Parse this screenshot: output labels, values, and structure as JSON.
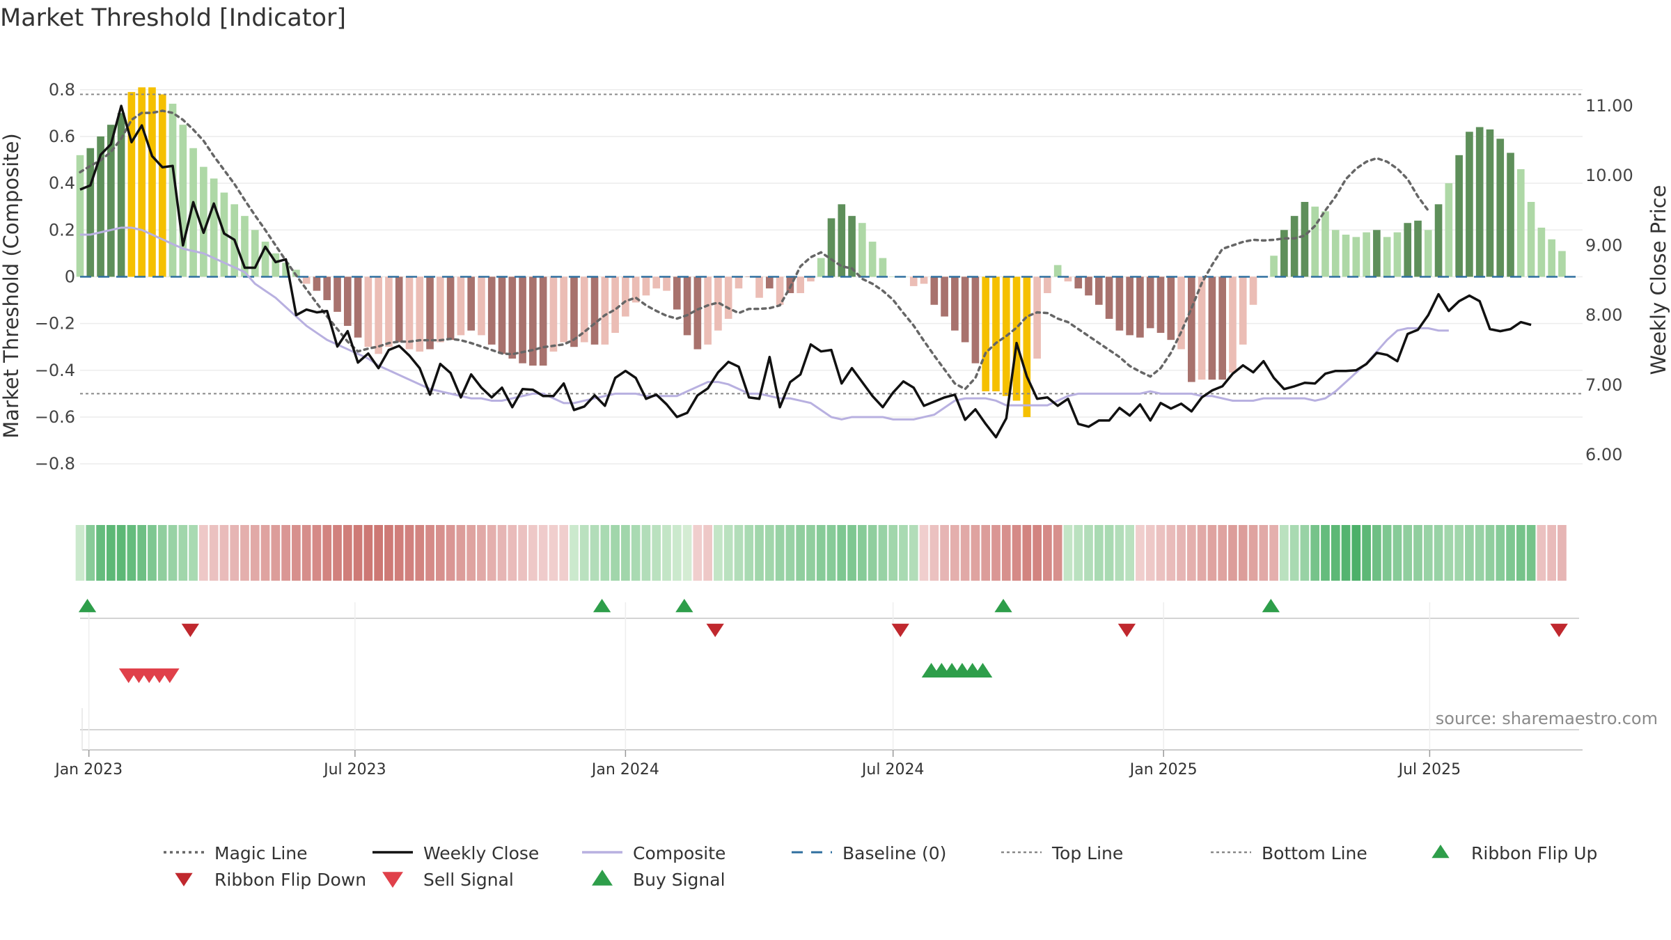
{
  "title": "Market Threshold [Indicator]",
  "source": "source: sharemaestro.com",
  "colors": {
    "magic_line": "#666666",
    "weekly_close": "#111111",
    "composite": "#b8b0e0",
    "baseline": "#2f6f9f",
    "top_bottom_line": "#888888",
    "bar_strong_pos": "#5e8f5a",
    "bar_weak_pos": "#aed8a6",
    "bar_strong_neg": "#a8726d",
    "bar_weak_neg": "#ebbdb5",
    "bar_extreme": "#f5c000",
    "signal_up": "#2e9e4a",
    "signal_down": "#d8333a"
  },
  "chart_data": {
    "type": "bar",
    "title": "Market Threshold [Indicator]",
    "xlabel": "",
    "ylabel": "Market Threshold (Composite)",
    "y2label": "Weekly Close Price",
    "ylim": [
      -0.88,
      0.85
    ],
    "y2lim": [
      5.6,
      11.4
    ],
    "yticks": [
      0.8,
      0.6,
      0.4,
      0.2,
      0,
      -0.2,
      -0.4,
      -0.6,
      -0.8
    ],
    "ytick_labels": [
      "0.8",
      "0.6",
      "0.4",
      "0.2",
      "0",
      "−0.2",
      "−0.4",
      "−0.6",
      "−0.8"
    ],
    "y2ticks": [
      11.0,
      10.0,
      9.0,
      8.0,
      7.0,
      6.0
    ],
    "y2tick_labels": [
      "11.00",
      "10.00",
      "9.00",
      "8.00",
      "7.00",
      "6.00"
    ],
    "x_range": [
      "2022-12-26",
      "2025-10-13"
    ],
    "xticks": [
      "2023-01-01",
      "2023-07-01",
      "2024-01-01",
      "2024-07-01",
      "2025-01-01",
      "2025-07-01"
    ],
    "xtick_labels": [
      "Jan 2023",
      "Jul 2023",
      "Jan 2024",
      "Jul 2024",
      "Jan 2025",
      "Jul 2025"
    ],
    "grid": true,
    "top_line": 0.78,
    "bottom_line": -0.5,
    "baseline": 0,
    "bar_colors_legend": [
      "strong_pos",
      "weak_pos",
      "strong_neg",
      "weak_neg",
      "extreme"
    ],
    "composite_bars": {
      "start": "2022-12-26",
      "step_days": 7,
      "values": [
        0.52,
        0.55,
        0.6,
        0.65,
        0.7,
        0.79,
        0.81,
        0.81,
        0.78,
        0.74,
        0.65,
        0.55,
        0.47,
        0.42,
        0.36,
        0.31,
        0.26,
        0.2,
        0.15,
        0.1,
        0.06,
        0.03,
        -0.03,
        -0.06,
        -0.1,
        -0.15,
        -0.21,
        -0.26,
        -0.3,
        -0.33,
        -0.3,
        -0.28,
        -0.31,
        -0.32,
        -0.31,
        -0.28,
        -0.27,
        -0.25,
        -0.23,
        -0.25,
        -0.29,
        -0.33,
        -0.35,
        -0.37,
        -0.38,
        -0.38,
        -0.32,
        -0.28,
        -0.3,
        -0.28,
        -0.29,
        -0.29,
        -0.24,
        -0.17,
        -0.11,
        -0.08,
        -0.05,
        -0.06,
        -0.14,
        -0.25,
        -0.31,
        -0.29,
        -0.23,
        -0.18,
        -0.05,
        0,
        -0.09,
        -0.05,
        -0.12,
        -0.07,
        -0.07,
        -0.02,
        0.08,
        0.25,
        0.31,
        0.26,
        0.23,
        0.15,
        0.08,
        0,
        0,
        -0.04,
        -0.03,
        -0.12,
        -0.17,
        -0.23,
        -0.28,
        -0.37,
        -0.49,
        -0.49,
        -0.51,
        -0.53,
        -0.6,
        -0.35,
        -0.07,
        0.05,
        -0.02,
        -0.05,
        -0.08,
        -0.12,
        -0.18,
        -0.23,
        -0.25,
        -0.26,
        -0.22,
        -0.24,
        -0.27,
        -0.31,
        -0.45,
        -0.44,
        -0.44,
        -0.44,
        -0.41,
        -0.29,
        -0.12,
        0,
        0.09,
        0.2,
        0.26,
        0.32,
        0.3,
        0.28,
        0.2,
        0.18,
        0.17,
        0.19,
        0.2,
        0.17,
        0.19,
        0.23,
        0.24,
        0.2,
        0.31,
        0.4,
        0.52,
        0.62,
        0.64,
        0.63,
        0.59,
        0.53,
        0.46,
        0.32,
        0.21,
        0.16,
        0.11
      ],
      "color_codes": [
        "W",
        "S",
        "S",
        "S",
        "S",
        "Y",
        "Y",
        "Y",
        "Y",
        "W",
        "W",
        "W",
        "W",
        "W",
        "W",
        "W",
        "W",
        "W",
        "W",
        "W",
        "W",
        "W",
        "w",
        "s",
        "s",
        "s",
        "s",
        "s",
        "w",
        "w",
        "w",
        "s",
        "w",
        "w",
        "s",
        "w",
        "s",
        "w",
        "s",
        "w",
        "s",
        "s",
        "s",
        "s",
        "s",
        "s",
        "w",
        "w",
        "s",
        "w",
        "s",
        "w",
        "w",
        "w",
        "w",
        "w",
        "w",
        "w",
        "s",
        "s",
        "s",
        "w",
        "w",
        "w",
        "w",
        "s",
        "w",
        "s",
        "w",
        "s",
        "w",
        "w",
        "W",
        "S",
        "S",
        "S",
        "W",
        "W",
        "W",
        "W",
        "W",
        "w",
        "w",
        "s",
        "s",
        "s",
        "s",
        "s",
        "Y",
        "Y",
        "Y",
        "Y",
        "Y",
        "w",
        "w",
        "W",
        "w",
        "s",
        "s",
        "s",
        "s",
        "s",
        "s",
        "s",
        "s",
        "s",
        "s",
        "w",
        "s",
        "w",
        "s",
        "s",
        "w",
        "w",
        "w",
        "W",
        "W",
        "S",
        "S",
        "S",
        "W",
        "W",
        "W",
        "W",
        "W",
        "W",
        "S",
        "W",
        "W",
        "S",
        "S",
        "W",
        "S",
        "W",
        "S",
        "S",
        "S",
        "S",
        "S",
        "S",
        "W",
        "W",
        "W",
        "W",
        "W",
        "W"
      ]
    },
    "series": [
      {
        "name": "Weekly Close",
        "axis": "right",
        "start": "2022-12-26",
        "step_days": 7,
        "values": [
          9.8,
          9.86,
          10.3,
          10.45,
          11.0,
          10.48,
          10.72,
          10.28,
          10.12,
          10.14,
          9.0,
          9.62,
          9.18,
          9.6,
          9.17,
          9.08,
          8.68,
          8.68,
          8.98,
          8.76,
          8.8,
          8.0,
          8.08,
          8.04,
          8.06,
          7.55,
          7.77,
          7.32,
          7.45,
          7.24,
          7.5,
          7.56,
          7.42,
          7.24,
          6.86,
          7.3,
          7.17,
          6.82,
          7.15,
          6.96,
          6.82,
          6.96,
          6.68,
          6.94,
          6.93,
          6.84,
          6.84,
          7.02,
          6.64,
          6.69,
          6.85,
          6.7,
          7.1,
          7.2,
          7.1,
          6.8,
          6.86,
          6.72,
          6.54,
          6.6,
          6.85,
          6.95,
          7.18,
          7.33,
          7.26,
          6.82,
          6.8,
          7.4,
          6.68,
          7.04,
          7.15,
          7.58,
          7.48,
          7.5,
          7.02,
          7.24,
          7.04,
          6.84,
          6.68,
          6.89,
          7.05,
          6.96,
          6.7,
          6.76,
          6.82,
          6.86,
          6.5,
          6.65,
          6.44,
          6.25,
          6.52,
          7.6,
          7.12,
          6.8,
          6.82,
          6.7,
          6.8,
          6.44,
          6.4,
          6.49,
          6.49,
          6.67,
          6.56,
          6.72,
          6.49,
          6.74,
          6.66,
          6.73,
          6.62,
          6.82,
          6.92,
          6.98,
          7.16,
          7.28,
          7.18,
          7.34,
          7.1,
          6.94,
          6.98,
          7.03,
          7.02,
          7.16,
          7.2,
          7.2,
          7.21,
          7.3,
          7.46,
          7.43,
          7.34,
          7.73,
          7.79,
          8.0,
          8.3,
          8.06,
          8.2,
          8.28,
          8.2,
          7.8,
          7.77,
          7.8,
          7.9,
          7.86
        ]
      },
      {
        "name": "Magic Line",
        "axis": "right",
        "start": "2022-12-26",
        "step_days": 7,
        "values": [
          10.05,
          10.14,
          10.22,
          10.34,
          10.53,
          10.8,
          10.9,
          10.9,
          10.93,
          10.9,
          10.8,
          10.66,
          10.5,
          10.28,
          10.08,
          9.88,
          9.65,
          9.43,
          9.22,
          9.0,
          8.78,
          8.57,
          8.37,
          8.17,
          7.98,
          7.8,
          7.62,
          7.48,
          7.52,
          7.55,
          7.6,
          7.62,
          7.62,
          7.64,
          7.64,
          7.64,
          7.66,
          7.64,
          7.6,
          7.55,
          7.5,
          7.45,
          7.44,
          7.47,
          7.5,
          7.54,
          7.56,
          7.58,
          7.65,
          7.76,
          7.88,
          8.0,
          8.08,
          8.2,
          8.25,
          8.14,
          8.06,
          7.99,
          7.95,
          8.0,
          8.08,
          8.14,
          8.18,
          8.1,
          8.03,
          8.09,
          8.09,
          8.1,
          8.14,
          8.4,
          8.7,
          8.83,
          8.9,
          8.8,
          8.7,
          8.67,
          8.52,
          8.45,
          8.35,
          8.22,
          8.03,
          7.85,
          7.63,
          7.42,
          7.22,
          7.02,
          6.94,
          7.1,
          7.46,
          7.6,
          7.7,
          7.82,
          7.98,
          8.04,
          8.03,
          7.95,
          7.9,
          7.8,
          7.7,
          7.6,
          7.5,
          7.4,
          7.27,
          7.19,
          7.12,
          7.24,
          7.46,
          7.76,
          8.1,
          8.46,
          8.72,
          8.95,
          9.0,
          9.05,
          9.08,
          9.07,
          9.08,
          9.1,
          9.1,
          9.14,
          9.28,
          9.5,
          9.7,
          9.95,
          10.1,
          10.2,
          10.25,
          10.2,
          10.1,
          9.95,
          9.7,
          9.5
        ]
      },
      {
        "name": "Composite",
        "axis": "left",
        "start": "2022-12-26",
        "step_days": 7,
        "values": [
          0.18,
          0.18,
          0.19,
          0.2,
          0.21,
          0.21,
          0.2,
          0.18,
          0.16,
          0.14,
          0.12,
          0.11,
          0.1,
          0.08,
          0.06,
          0.04,
          0.02,
          -0.03,
          -0.06,
          -0.09,
          -0.13,
          -0.17,
          -0.21,
          -0.24,
          -0.27,
          -0.29,
          -0.31,
          -0.33,
          -0.35,
          -0.38,
          -0.4,
          -0.42,
          -0.44,
          -0.46,
          -0.48,
          -0.49,
          -0.5,
          -0.51,
          -0.52,
          -0.52,
          -0.53,
          -0.53,
          -0.52,
          -0.51,
          -0.5,
          -0.5,
          -0.52,
          -0.54,
          -0.54,
          -0.53,
          -0.52,
          -0.51,
          -0.5,
          -0.5,
          -0.5,
          -0.51,
          -0.51,
          -0.51,
          -0.51,
          -0.49,
          -0.47,
          -0.45,
          -0.45,
          -0.46,
          -0.48,
          -0.5,
          -0.5,
          -0.51,
          -0.52,
          -0.52,
          -0.53,
          -0.54,
          -0.57,
          -0.6,
          -0.61,
          -0.6,
          -0.6,
          -0.6,
          -0.6,
          -0.61,
          -0.61,
          -0.61,
          -0.6,
          -0.59,
          -0.56,
          -0.53,
          -0.52,
          -0.52,
          -0.52,
          -0.53,
          -0.55,
          -0.55,
          -0.55,
          -0.55,
          -0.55,
          -0.53,
          -0.51,
          -0.5,
          -0.5,
          -0.5,
          -0.5,
          -0.5,
          -0.5,
          -0.5,
          -0.49,
          -0.5,
          -0.5,
          -0.5,
          -0.5,
          -0.51,
          -0.51,
          -0.52,
          -0.53,
          -0.53,
          -0.53,
          -0.52,
          -0.52,
          -0.52,
          -0.52,
          -0.52,
          -0.53,
          -0.52,
          -0.49,
          -0.45,
          -0.41,
          -0.37,
          -0.32,
          -0.27,
          -0.23,
          -0.22,
          -0.22,
          -0.22,
          -0.23,
          -0.23
        ]
      }
    ],
    "ribbon": {
      "start": "2022-12-26",
      "step_days": 7,
      "values": [
        0.1,
        0.5,
        0.7,
        0.75,
        0.75,
        0.7,
        0.65,
        0.55,
        0.45,
        0.4,
        0.35,
        0.3,
        -0.15,
        -0.2,
        -0.25,
        -0.3,
        -0.35,
        -0.4,
        -0.45,
        -0.5,
        -0.55,
        -0.6,
        -0.62,
        -0.65,
        -0.7,
        -0.72,
        -0.75,
        -0.78,
        -0.8,
        -0.8,
        -0.78,
        -0.75,
        -0.72,
        -0.7,
        -0.65,
        -0.6,
        -0.55,
        -0.5,
        -0.45,
        -0.4,
        -0.35,
        -0.3,
        -0.25,
        -0.2,
        -0.15,
        -0.12,
        -0.1,
        -0.1,
        0.1,
        0.2,
        0.25,
        0.3,
        0.35,
        0.35,
        0.3,
        0.25,
        0.2,
        0.15,
        0.1,
        0.05,
        -0.1,
        -0.15,
        0.15,
        0.2,
        0.25,
        0.3,
        0.35,
        0.35,
        0.4,
        0.4,
        0.45,
        0.45,
        0.5,
        0.5,
        0.55,
        0.55,
        0.5,
        0.45,
        0.4,
        0.35,
        0.3,
        0.25,
        -0.1,
        -0.2,
        -0.3,
        -0.35,
        -0.4,
        -0.45,
        -0.5,
        -0.55,
        -0.6,
        -0.65,
        -0.7,
        -0.7,
        -0.65,
        -0.6,
        0.15,
        0.2,
        0.25,
        0.3,
        0.3,
        0.25,
        0.2,
        -0.1,
        -0.15,
        -0.2,
        -0.25,
        -0.3,
        -0.35,
        -0.4,
        -0.45,
        -0.45,
        -0.5,
        -0.5,
        -0.45,
        -0.4,
        -0.35,
        0.2,
        0.3,
        0.4,
        0.6,
        0.7,
        0.75,
        0.8,
        0.85,
        0.75,
        0.65,
        0.55,
        0.5,
        0.45,
        0.45,
        0.4,
        0.4,
        0.35,
        0.35,
        0.4,
        0.4,
        0.45,
        0.5,
        0.55,
        0.6,
        0.6,
        -0.2,
        -0.25,
        -0.3
      ]
    },
    "signals": {
      "ribbon_flip_up": [
        "2022-12-31",
        "2023-12-16",
        "2024-02-10",
        "2024-09-14",
        "2025-03-15"
      ],
      "ribbon_flip_down": [
        "2023-03-11",
        "2024-03-02",
        "2024-07-06",
        "2024-12-07",
        "2025-09-27"
      ],
      "sell_signal": [
        "2023-01-28",
        "2023-02-04",
        "2023-02-11",
        "2023-02-18",
        "2023-02-25"
      ],
      "buy_signal": [
        "2024-07-27",
        "2024-08-03",
        "2024-08-10",
        "2024-08-17",
        "2024-08-24",
        "2024-08-31"
      ]
    },
    "legend": [
      {
        "label": "Magic Line",
        "kind": "dotted",
        "color": "#666666"
      },
      {
        "label": "Weekly Close",
        "kind": "solid",
        "color": "#111111"
      },
      {
        "label": "Composite",
        "kind": "solid",
        "color": "#b8b0e0"
      },
      {
        "label": "Baseline (0)",
        "kind": "dashed",
        "color": "#2f6f9f"
      },
      {
        "label": "Top Line",
        "kind": "dotted-thin",
        "color": "#888888"
      },
      {
        "label": "Bottom Line",
        "kind": "dotted-thin",
        "color": "#888888"
      },
      {
        "label": "Ribbon Flip Up",
        "kind": "tri-up",
        "color": "#2e9e4a"
      },
      {
        "label": "Ribbon Flip Down",
        "kind": "tri-down",
        "color": "#c0282e"
      },
      {
        "label": "Sell Signal",
        "kind": "tri-down",
        "color": "#e0404a"
      },
      {
        "label": "Buy Signal",
        "kind": "tri-up",
        "color": "#2e9e4a"
      }
    ],
    "legend_position": "bottom"
  }
}
